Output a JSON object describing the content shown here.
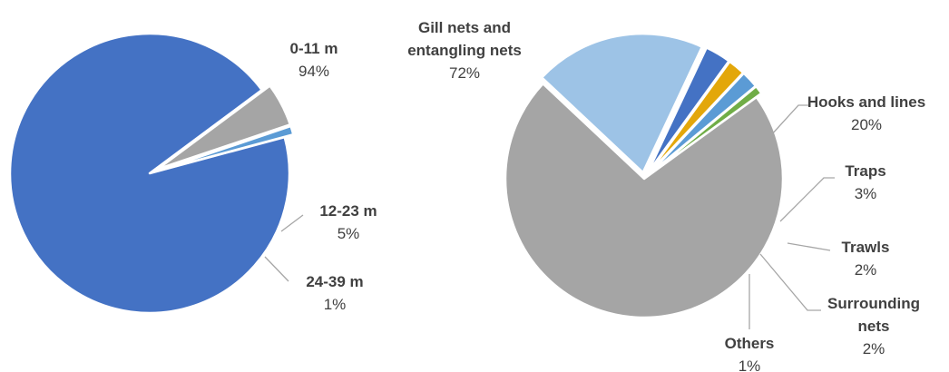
{
  "chart_data": [
    {
      "type": "pie",
      "categories": [
        "0-11 m",
        "12-23 m",
        "24-39 m"
      ],
      "values": [
        94,
        5,
        1
      ],
      "value_labels": [
        "94%",
        "5%",
        "1%"
      ],
      "colors": [
        "#4472c4",
        "#a5a5a5",
        "#5b9bd5"
      ],
      "exploded": [
        false,
        true,
        true
      ]
    },
    {
      "type": "pie",
      "categories": [
        "Gill nets and entangling nets",
        "Hooks and lines",
        "Traps",
        "Trawls",
        "Surrounding nets",
        "Others"
      ],
      "values": [
        72,
        20,
        3,
        2,
        2,
        1
      ],
      "value_labels": [
        "72%",
        "20%",
        "3%",
        "2%",
        "2%",
        "1%"
      ],
      "colors": [
        "#a5a5a5",
        "#9dc3e6",
        "#4472c4",
        "#e3a70a",
        "#5b9bd5",
        "#70ad47"
      ],
      "exploded": [
        false,
        true,
        true,
        true,
        true,
        true
      ]
    }
  ]
}
